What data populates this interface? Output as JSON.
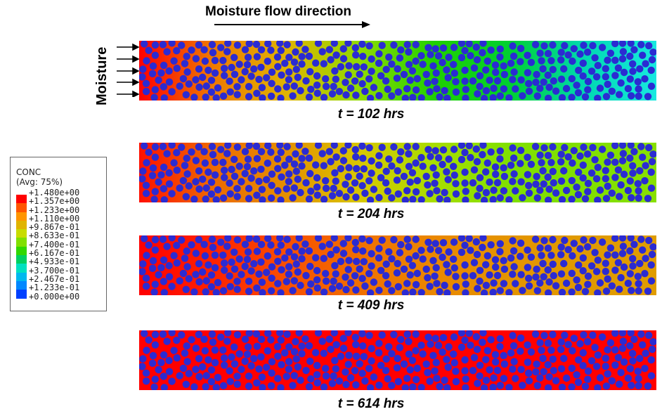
{
  "header": {
    "title": "Moisture flow direction"
  },
  "side_label": "Moisture",
  "legend": {
    "title": "CONC",
    "subtitle": "(Avg: 75%)",
    "ticks": [
      "+1.480e+00",
      "+1.357e+00",
      "+1.233e+00",
      "+1.110e+00",
      "+9.867e-01",
      "+8.633e-01",
      "+7.400e-01",
      "+6.167e-01",
      "+4.933e-01",
      "+3.700e-01",
      "+2.467e-01",
      "+1.233e-01",
      "+0.000e+00"
    ],
    "colors": [
      "#ff0000",
      "#ff5500",
      "#ff9500",
      "#e0b400",
      "#c8dc00",
      "#80e000",
      "#30d800",
      "#00d060",
      "#00e0c0",
      "#00b8ee",
      "#0088ff",
      "#0040ff"
    ]
  },
  "panels": [
    {
      "time_label": "t = 102 hrs",
      "stops": [
        "#ff0000",
        "#ee7a00",
        "#e0b400",
        "#8edc00",
        "#20d000",
        "#00d030",
        "#00d8b0",
        "#18e8e0"
      ]
    },
    {
      "time_label": "t = 204 hrs",
      "stops": [
        "#ff1000",
        "#ee6a00",
        "#e49000",
        "#d8c800",
        "#a8de00",
        "#80e000",
        "#80e000",
        "#88e000"
      ]
    },
    {
      "time_label": "t = 409 hrs",
      "stops": [
        "#ff0000",
        "#ff2200",
        "#f85000",
        "#f07000",
        "#ea8800",
        "#e49400",
        "#e09a00",
        "#e09c00"
      ]
    },
    {
      "time_label": "t = 614 hrs",
      "stops": [
        "#ff0000",
        "#ff0000",
        "#ff0000",
        "#ff0000",
        "#ff0000",
        "#ff0000",
        "#ff0000",
        "#ff0000"
      ]
    }
  ],
  "fiber_color": "#2b2bd2"
}
